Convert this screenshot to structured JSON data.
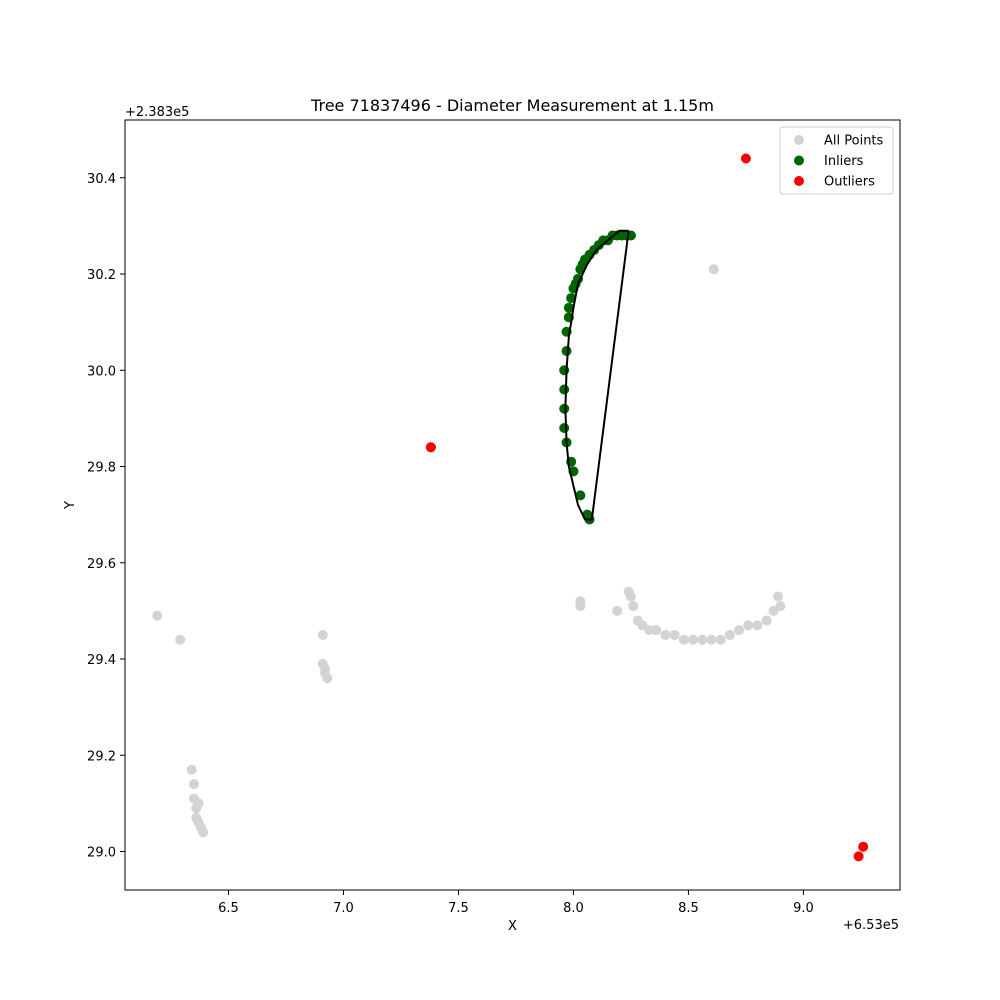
{
  "chart_data": {
    "type": "scatter",
    "title": "Tree 71837496 - Diameter Measurement at 1.15m",
    "xlabel": "X",
    "ylabel": "Y",
    "x_offset_label": "+6.53e5",
    "y_offset_label": "+2.383e5",
    "xlim": [
      6.05,
      9.42
    ],
    "ylim": [
      28.92,
      30.52
    ],
    "x_ticks": [
      6.5,
      7.0,
      7.5,
      8.0,
      8.5,
      9.0
    ],
    "x_tick_labels": [
      "6.5",
      "7.0",
      "7.5",
      "8.0",
      "8.5",
      "9.0"
    ],
    "y_ticks": [
      29.0,
      29.2,
      29.4,
      29.6,
      29.8,
      30.0,
      30.2,
      30.4
    ],
    "y_tick_labels": [
      "29.0",
      "29.2",
      "29.4",
      "29.6",
      "29.8",
      "30.0",
      "30.2",
      "30.4"
    ],
    "legend_position": "top-right",
    "series": [
      {
        "name": "All Points",
        "color": "#d3d3d3",
        "x": [
          6.19,
          6.29,
          6.34,
          6.35,
          6.35,
          6.36,
          6.36,
          6.37,
          6.37,
          6.38,
          6.39,
          6.91,
          6.91,
          6.92,
          6.92,
          6.93,
          8.03,
          8.03,
          8.19,
          8.24,
          8.25,
          8.26,
          8.28,
          8.3,
          8.33,
          8.36,
          8.4,
          8.44,
          8.48,
          8.52,
          8.56,
          8.6,
          8.64,
          8.68,
          8.72,
          8.76,
          8.8,
          8.84,
          8.87,
          8.89,
          8.9,
          8.61
        ],
        "y": [
          29.49,
          29.44,
          29.17,
          29.14,
          29.11,
          29.09,
          29.07,
          29.06,
          29.1,
          29.05,
          29.04,
          29.45,
          29.39,
          29.37,
          29.38,
          29.36,
          29.52,
          29.51,
          29.5,
          29.54,
          29.53,
          29.51,
          29.48,
          29.47,
          29.46,
          29.46,
          29.45,
          29.45,
          29.44,
          29.44,
          29.44,
          29.44,
          29.44,
          29.45,
          29.46,
          29.47,
          29.47,
          29.48,
          29.5,
          29.53,
          29.51,
          30.21
        ]
      },
      {
        "name": "Inliers",
        "color": "#006400",
        "x": [
          7.97,
          7.96,
          7.96,
          7.96,
          7.96,
          7.97,
          7.97,
          7.98,
          7.98,
          7.99,
          8.0,
          8.01,
          8.02,
          8.03,
          8.04,
          8.05,
          8.07,
          8.09,
          8.11,
          8.13,
          8.15,
          8.17,
          8.19,
          8.21,
          8.23,
          8.25,
          7.99,
          8.0,
          8.03,
          8.06,
          8.07
        ],
        "y": [
          29.85,
          29.88,
          29.92,
          29.96,
          30.0,
          30.04,
          30.08,
          30.11,
          30.13,
          30.15,
          30.17,
          30.18,
          30.19,
          30.21,
          30.22,
          30.23,
          30.24,
          30.25,
          30.26,
          30.27,
          30.27,
          30.28,
          30.28,
          30.28,
          30.28,
          30.28,
          29.81,
          29.79,
          29.74,
          29.7,
          29.69
        ]
      },
      {
        "name": "Outliers",
        "color": "#ff0000",
        "x": [
          7.38,
          7.38,
          8.75,
          9.26,
          9.24
        ],
        "y": [
          29.84,
          29.84,
          30.44,
          29.01,
          28.99
        ]
      }
    ],
    "fitted_outline": {
      "color": "#000000",
      "x": [
        8.24,
        8.2,
        8.15,
        8.1,
        8.06,
        8.02,
        8.0,
        7.98,
        7.97,
        7.965,
        7.97,
        7.98,
        8.0,
        8.02,
        8.05,
        8.08,
        8.24
      ],
      "y": [
        30.29,
        30.29,
        30.27,
        30.25,
        30.22,
        30.18,
        30.13,
        30.07,
        30.0,
        29.92,
        29.85,
        29.8,
        29.76,
        29.72,
        29.69,
        29.69,
        30.29
      ]
    }
  }
}
